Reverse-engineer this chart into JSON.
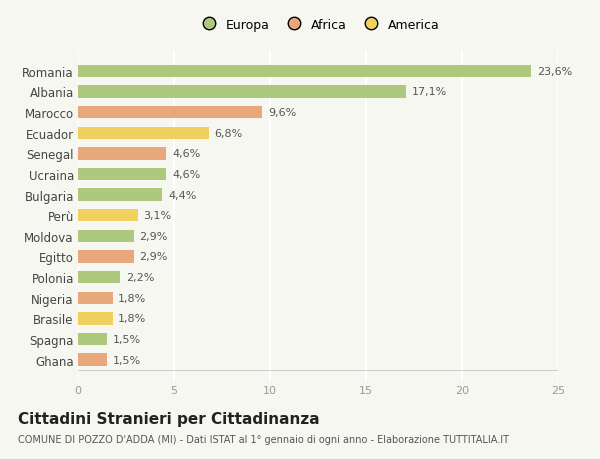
{
  "categories": [
    "Romania",
    "Albania",
    "Marocco",
    "Ecuador",
    "Senegal",
    "Ucraina",
    "Bulgaria",
    "Perù",
    "Moldova",
    "Egitto",
    "Polonia",
    "Nigeria",
    "Brasile",
    "Spagna",
    "Ghana"
  ],
  "values": [
    23.6,
    17.1,
    9.6,
    6.8,
    4.6,
    4.6,
    4.4,
    3.1,
    2.9,
    2.9,
    2.2,
    1.8,
    1.8,
    1.5,
    1.5
  ],
  "labels": [
    "23,6%",
    "17,1%",
    "9,6%",
    "6,8%",
    "4,6%",
    "4,6%",
    "4,4%",
    "3,1%",
    "2,9%",
    "2,9%",
    "2,2%",
    "1,8%",
    "1,8%",
    "1,5%",
    "1,5%"
  ],
  "colors": [
    "#aec97e",
    "#aec97e",
    "#e8a87c",
    "#f2d060",
    "#e8a87c",
    "#aec97e",
    "#aec97e",
    "#f2d060",
    "#aec97e",
    "#e8a87c",
    "#aec97e",
    "#e8a87c",
    "#f2d060",
    "#aec97e",
    "#e8a87c"
  ],
  "legend_labels": [
    "Europa",
    "Africa",
    "America"
  ],
  "legend_colors": [
    "#aec97e",
    "#e8a87c",
    "#f2d060"
  ],
  "title": "Cittadini Stranieri per Cittadinanza",
  "subtitle": "COMUNE DI POZZO D'ADDA (MI) - Dati ISTAT al 1° gennaio di ogni anno - Elaborazione TUTTITALIA.IT",
  "xlim": [
    0,
    25
  ],
  "xticks": [
    0,
    5,
    10,
    15,
    20,
    25
  ],
  "background_color": "#f7f7f2",
  "grid_color": "#ffffff",
  "bar_label_fontsize": 8,
  "ytick_fontsize": 8.5,
  "xtick_fontsize": 8,
  "title_fontsize": 11,
  "subtitle_fontsize": 7,
  "legend_fontsize": 9
}
